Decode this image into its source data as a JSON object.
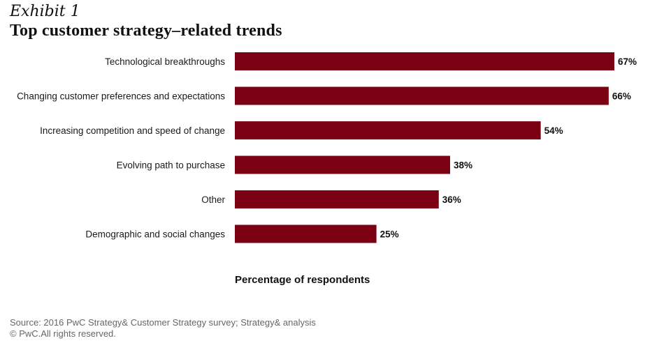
{
  "header": {
    "exhibit": "Exhibit 1",
    "title": "Top customer strategy–related trends"
  },
  "chart_data": {
    "type": "bar",
    "orientation": "horizontal",
    "title": "Top customer strategy–related trends",
    "xlabel": "Percentage of respondents",
    "ylabel": "",
    "categories": [
      "Technological breakthroughs",
      "Changing customer preferences and expectations",
      "Increasing competition and speed of change",
      "Evolving path to purchase",
      "Other",
      "Demographic and social changes"
    ],
    "values": [
      67,
      66,
      54,
      38,
      36,
      25
    ],
    "value_labels": [
      "67%",
      "66%",
      "54%",
      "38%",
      "36%",
      "25%"
    ],
    "unit": "%",
    "xlim": [
      0,
      67
    ],
    "grid": false,
    "legend": "none",
    "bar_color": "#7a0012"
  },
  "footer": {
    "source": "Source: 2016 PwC Strategy& Customer Strategy survey; Strategy& analysis",
    "copyright": "© PwC.All rights reserved."
  }
}
